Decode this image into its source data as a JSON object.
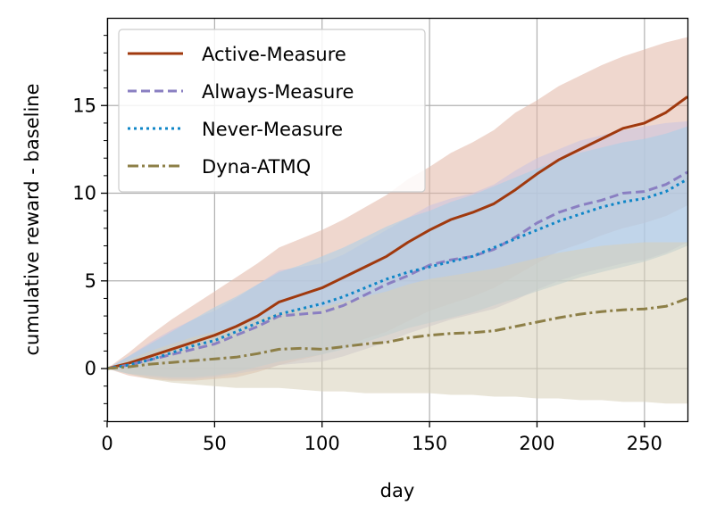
{
  "chart_data": {
    "type": "line",
    "title": "",
    "xlabel": "day",
    "ylabel": "cumulative reward - baseline",
    "xlim": [
      0,
      270
    ],
    "ylim": [
      -3,
      20
    ],
    "xticks": [
      0,
      50,
      100,
      150,
      200,
      250
    ],
    "yticks": [
      0,
      5,
      10,
      15
    ],
    "grid": true,
    "legend_position": "top-left",
    "x": [
      0,
      10,
      20,
      30,
      40,
      50,
      60,
      70,
      80,
      90,
      100,
      110,
      120,
      130,
      140,
      150,
      160,
      170,
      180,
      190,
      200,
      210,
      220,
      230,
      240,
      250,
      260,
      270
    ],
    "series": [
      {
        "name": "Active-Measure",
        "color": "#a0390e",
        "band_color": "#e2b6a6",
        "style": "solid",
        "values": [
          0,
          0.3,
          0.7,
          1.1,
          1.5,
          1.9,
          2.4,
          3.0,
          3.8,
          4.2,
          4.6,
          5.2,
          5.8,
          6.4,
          7.2,
          7.9,
          8.5,
          8.9,
          9.4,
          10.2,
          11.1,
          11.9,
          12.5,
          13.1,
          13.7,
          14.0,
          14.6,
          15.5
        ],
        "lower": [
          0,
          -0.4,
          -0.6,
          -0.7,
          -0.7,
          -0.6,
          -0.5,
          -0.2,
          0.2,
          0.5,
          0.8,
          1.2,
          1.7,
          2.1,
          2.7,
          3.3,
          3.7,
          4.1,
          4.6,
          5.3,
          6.0,
          6.7,
          7.1,
          7.6,
          8.0,
          8.3,
          8.7,
          9.3
        ],
        "upper": [
          0,
          0.9,
          1.9,
          2.8,
          3.6,
          4.4,
          5.2,
          6.0,
          6.9,
          7.4,
          7.9,
          8.5,
          9.2,
          9.9,
          10.8,
          11.5,
          12.3,
          12.9,
          13.6,
          14.6,
          15.3,
          16.1,
          16.7,
          17.3,
          17.8,
          18.2,
          18.6,
          18.9
        ]
      },
      {
        "name": "Always-Measure",
        "color": "#8a7fc2",
        "band_color": "#c9c3e0",
        "style": "dashed",
        "values": [
          0,
          0.2,
          0.5,
          0.8,
          1.1,
          1.4,
          1.9,
          2.4,
          3.0,
          3.1,
          3.2,
          3.6,
          4.2,
          4.8,
          5.3,
          5.9,
          6.2,
          6.4,
          6.8,
          7.5,
          8.3,
          8.9,
          9.3,
          9.6,
          10.0,
          10.1,
          10.5,
          11.2
        ],
        "lower": [
          0,
          -0.3,
          -0.5,
          -0.6,
          -0.6,
          -0.5,
          -0.3,
          -0.1,
          0.2,
          0.3,
          0.4,
          0.7,
          1.1,
          1.5,
          2.0,
          2.4,
          2.8,
          3.1,
          3.4,
          3.9,
          4.5,
          5.0,
          5.4,
          5.7,
          6.0,
          6.2,
          6.6,
          7.2
        ],
        "upper": [
          0,
          0.7,
          1.5,
          2.2,
          2.8,
          3.3,
          4.0,
          4.8,
          5.6,
          5.8,
          6.0,
          6.5,
          7.2,
          7.9,
          8.6,
          9.3,
          9.7,
          10.0,
          10.5,
          11.3,
          12.0,
          12.5,
          13.0,
          13.3,
          13.6,
          13.8,
          14.0,
          14.1
        ]
      },
      {
        "name": "Never-Measure",
        "color": "#0f86c7",
        "band_color": "#a8cde8",
        "style": "dotted",
        "values": [
          0,
          0.2,
          0.5,
          0.9,
          1.3,
          1.6,
          2.1,
          2.6,
          3.1,
          3.4,
          3.7,
          4.1,
          4.6,
          5.1,
          5.5,
          5.8,
          6.1,
          6.4,
          6.9,
          7.4,
          7.9,
          8.4,
          8.8,
          9.2,
          9.5,
          9.7,
          10.1,
          10.8
        ],
        "lower": [
          0,
          -0.3,
          -0.4,
          -0.5,
          -0.5,
          -0.4,
          -0.2,
          0.1,
          0.4,
          0.6,
          0.8,
          1.1,
          1.5,
          1.9,
          2.3,
          2.6,
          2.9,
          3.2,
          3.6,
          4.0,
          4.4,
          4.8,
          5.2,
          5.5,
          5.8,
          6.1,
          6.5,
          7.0
        ],
        "upper": [
          0,
          0.7,
          1.4,
          2.1,
          2.8,
          3.5,
          4.1,
          4.8,
          5.5,
          5.9,
          6.4,
          6.9,
          7.5,
          8.1,
          8.6,
          9.0,
          9.5,
          9.9,
          10.4,
          10.9,
          11.4,
          11.9,
          12.3,
          12.6,
          12.9,
          13.1,
          13.4,
          13.8
        ]
      },
      {
        "name": "Dyna-ATMQ",
        "color": "#8d7f47",
        "band_color": "#d7d0b8",
        "style": "dashdot",
        "values": [
          0,
          0.1,
          0.25,
          0.35,
          0.45,
          0.55,
          0.65,
          0.85,
          1.1,
          1.15,
          1.1,
          1.25,
          1.4,
          1.5,
          1.75,
          1.9,
          2.0,
          2.05,
          2.15,
          2.4,
          2.65,
          2.9,
          3.1,
          3.25,
          3.35,
          3.4,
          3.55,
          4.0
        ],
        "lower": [
          0,
          -0.3,
          -0.6,
          -0.8,
          -0.9,
          -1.0,
          -1.1,
          -1.1,
          -1.1,
          -1.2,
          -1.3,
          -1.3,
          -1.4,
          -1.4,
          -1.4,
          -1.4,
          -1.5,
          -1.5,
          -1.6,
          -1.6,
          -1.7,
          -1.7,
          -1.8,
          -1.8,
          -1.9,
          -1.9,
          -2.0,
          -2.0
        ],
        "upper": [
          0,
          0.5,
          1.0,
          1.4,
          1.8,
          2.1,
          2.4,
          2.8,
          3.2,
          3.4,
          3.5,
          3.8,
          4.1,
          4.4,
          4.8,
          5.1,
          5.3,
          5.5,
          5.7,
          6.0,
          6.3,
          6.6,
          6.8,
          7.0,
          7.1,
          7.2,
          7.2,
          7.2
        ]
      }
    ]
  }
}
